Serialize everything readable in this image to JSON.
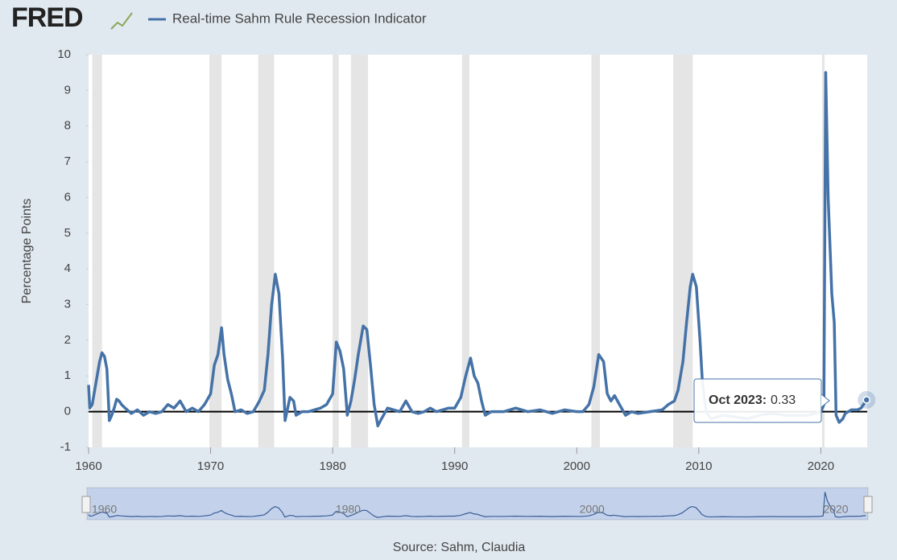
{
  "logo": "FRED",
  "chart_data": {
    "type": "line",
    "y_label": "Percentage Points",
    "source": "Source: Sahm, Claudia",
    "xlim": [
      1960,
      2023.8
    ],
    "xticks": [
      1960,
      1970,
      1980,
      1990,
      2000,
      2010,
      2020
    ],
    "ylim": [
      -1,
      10
    ],
    "yticks": [
      -1,
      0,
      1,
      2,
      3,
      4,
      5,
      6,
      7,
      8,
      9,
      10
    ],
    "grid": false,
    "recessions": [
      [
        1960.3,
        1961.1
      ],
      [
        1969.9,
        1970.9
      ],
      [
        1973.9,
        1975.2
      ],
      [
        1980.0,
        1980.5
      ],
      [
        1981.5,
        1982.9
      ],
      [
        1990.6,
        1991.2
      ],
      [
        2001.2,
        2001.9
      ],
      [
        2007.9,
        2009.5
      ],
      [
        2020.1,
        2020.3
      ]
    ],
    "navigator_ticks": [
      1960,
      1980,
      2000,
      2020
    ],
    "tooltip": {
      "label": "Oct 2023:",
      "value": 0.33
    },
    "x": [
      1960.0,
      1960.1,
      1960.3,
      1960.5,
      1960.7,
      1960.9,
      1961.1,
      1961.3,
      1961.5,
      1961.6,
      1961.7,
      1961.9,
      1962.1,
      1962.3,
      1962.5,
      1962.7,
      1963,
      1963.5,
      1964,
      1964.5,
      1965,
      1965.5,
      1966,
      1966.5,
      1967,
      1967.5,
      1968,
      1968.5,
      1969,
      1969.5,
      1970,
      1970.3,
      1970.6,
      1970.9,
      1971.1,
      1971.4,
      1971.7,
      1972,
      1972.5,
      1973,
      1973.5,
      1974,
      1974.4,
      1974.7,
      1975,
      1975.3,
      1975.6,
      1975.9,
      1976.1,
      1976.5,
      1976.8,
      1977,
      1977.5,
      1978,
      1978.5,
      1979,
      1979.5,
      1980,
      1980.3,
      1980.6,
      1980.9,
      1981.2,
      1981.5,
      1981.8,
      1982.1,
      1982.5,
      1982.8,
      1983.1,
      1983.4,
      1983.7,
      1984,
      1984.5,
      1985,
      1985.5,
      1986,
      1986.5,
      1987,
      1987.5,
      1988,
      1988.5,
      1989,
      1989.5,
      1990,
      1990.5,
      1990.9,
      1991.3,
      1991.6,
      1991.9,
      1992.2,
      1992.5,
      1993,
      1994,
      1995,
      1996,
      1997,
      1998,
      1999,
      2000,
      2000.5,
      2001,
      2001.4,
      2001.8,
      2002.2,
      2002.5,
      2002.8,
      2003.1,
      2003.5,
      2004,
      2004.5,
      2005,
      2006,
      2007,
      2007.5,
      2008,
      2008.3,
      2008.7,
      2009,
      2009.3,
      2009.5,
      2009.8,
      2010.1,
      2010.3,
      2010.6,
      2011,
      2012,
      2013,
      2014,
      2015,
      2016,
      2017,
      2018,
      2019,
      2020,
      2020.25,
      2020.4,
      2020.6,
      2020.9,
      2021.1,
      2021.25,
      2021.5,
      2021.8,
      2022,
      2022.5,
      2023,
      2023.3,
      2023.75
    ],
    "series": [
      {
        "name": "Real-time Sahm Rule Recession Indicator",
        "color": "#4572a7",
        "values": [
          0.75,
          0.1,
          0.2,
          0.6,
          1.0,
          1.4,
          1.65,
          1.55,
          1.2,
          0.5,
          -0.25,
          -0.1,
          0.1,
          0.35,
          0.3,
          0.2,
          0.1,
          -0.05,
          0.05,
          -0.1,
          0.0,
          -0.05,
          0.0,
          0.2,
          0.1,
          0.3,
          0.0,
          0.1,
          0.0,
          0.2,
          0.5,
          1.3,
          1.6,
          2.35,
          1.6,
          0.9,
          0.5,
          0.0,
          0.05,
          -0.05,
          0.0,
          0.3,
          0.6,
          1.6,
          3.0,
          3.85,
          3.3,
          1.5,
          -0.25,
          0.4,
          0.3,
          -0.1,
          0.0,
          0.0,
          0.05,
          0.1,
          0.2,
          0.5,
          1.95,
          1.7,
          1.2,
          -0.1,
          0.3,
          0.9,
          1.6,
          2.4,
          2.3,
          1.3,
          0.2,
          -0.4,
          -0.2,
          0.1,
          0.05,
          0.0,
          0.3,
          0.0,
          -0.05,
          0.0,
          0.1,
          0.0,
          0.05,
          0.1,
          0.1,
          0.4,
          1.0,
          1.5,
          1.0,
          0.8,
          0.3,
          -0.1,
          0.0,
          0.0,
          0.1,
          0.0,
          0.05,
          -0.05,
          0.05,
          0.0,
          0.0,
          0.2,
          0.7,
          1.6,
          1.4,
          0.5,
          0.3,
          0.45,
          0.2,
          -0.1,
          0.0,
          -0.05,
          0.0,
          0.05,
          0.2,
          0.3,
          0.6,
          1.4,
          2.5,
          3.5,
          3.85,
          3.5,
          2.0,
          0.8,
          0.0,
          -0.2,
          -0.1,
          -0.15,
          -0.2,
          -0.1,
          -0.05,
          -0.1,
          -0.1,
          -0.1,
          0.0,
          0.2,
          9.5,
          6.0,
          3.3,
          2.5,
          -0.1,
          -0.3,
          -0.2,
          -0.05,
          0.05,
          0.05,
          0.1,
          0.33
        ]
      }
    ]
  }
}
